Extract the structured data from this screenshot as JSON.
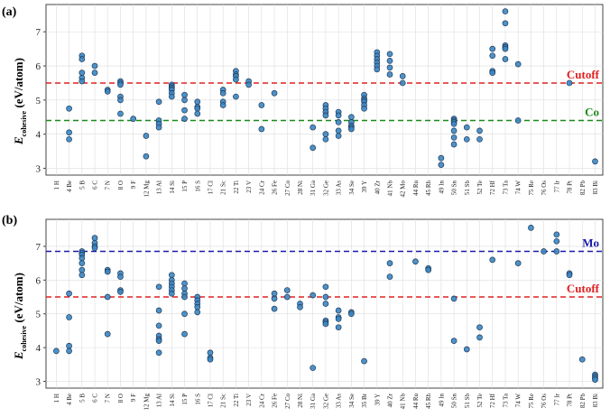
{
  "chart_data": [
    {
      "type": "scatter",
      "panel_label": "(a)",
      "ylabel_main": "E",
      "ylabel_sub": "cohesive",
      "ylabel_rest": " (eV/atom)",
      "ylim": [
        2.8,
        7.8
      ],
      "yticks": [
        "3",
        "4",
        "5",
        "6",
        "7"
      ],
      "ytick_values": [
        3,
        4,
        5,
        6,
        7
      ],
      "grid": true,
      "categories": [
        "1 H",
        "4 Be",
        "5 B",
        "6 C",
        "7 N",
        "8 O",
        "9 F",
        "12 Mg",
        "13 Al",
        "14 Si",
        "15 P",
        "16 S",
        "17 Cl",
        "21 Sc",
        "22 Ti",
        "23 V",
        "24 Cr",
        "26 Fe",
        "27 Co",
        "28 Ni",
        "31 Ga",
        "32 Ge",
        "33 As",
        "34 Se",
        "39 Y",
        "40 Zr",
        "41 Nb",
        "42 Mo",
        "44 Ru",
        "45 Rh",
        "49 In",
        "50 Sn",
        "51 Sb",
        "52 Te",
        "72 Hf",
        "73 Ta",
        "74 W",
        "75 Re",
        "76 Os",
        "77 Ir",
        "78 Pt",
        "82 Pb",
        "83 Bi"
      ],
      "points": {
        "4 Be": [
          4.75,
          4.05,
          3.85
        ],
        "5 B": [
          6.3,
          6.2,
          5.8,
          5.65,
          5.55
        ],
        "6 C": [
          6.0,
          5.8
        ],
        "7 N": [
          5.3,
          5.25
        ],
        "8 O": [
          5.55,
          5.5,
          5.45,
          5.1,
          5.0,
          4.6
        ],
        "9 F": [
          4.45
        ],
        "12 Mg": [
          3.95,
          3.35
        ],
        "13 Al": [
          4.95,
          4.4,
          4.3,
          4.2
        ],
        "14 Si": [
          5.45,
          5.4,
          5.35,
          5.3,
          5.2,
          5.1
        ],
        "15 P": [
          5.15,
          5.0,
          4.7,
          4.45
        ],
        "16 S": [
          4.95,
          4.8,
          4.75,
          4.6
        ],
        "21 Sc": [
          5.3,
          5.2,
          4.95,
          4.85
        ],
        "22 Ti": [
          5.85,
          5.75,
          5.7,
          5.6,
          5.1
        ],
        "23 V": [
          5.55,
          5.45
        ],
        "24 Cr": [
          4.85,
          4.15
        ],
        "26 Fe": [
          5.2
        ],
        "31 Ga": [
          4.2,
          3.6
        ],
        "32 Ge": [
          4.85,
          4.75,
          4.65,
          4.55,
          4.0,
          3.85
        ],
        "33 As": [
          4.65,
          4.55,
          4.35,
          4.1,
          3.95
        ],
        "34 Se": [
          4.5,
          4.35,
          4.25,
          4.2,
          4.15
        ],
        "39 Y": [
          5.15,
          5.05,
          5.0,
          4.95,
          4.85,
          4.75
        ],
        "40 Zr": [
          6.4,
          6.3,
          6.2,
          6.1,
          6.0,
          5.9
        ],
        "41 Nb": [
          6.35,
          6.15,
          5.95,
          5.75
        ],
        "42 Mo": [
          5.7,
          5.5
        ],
        "49 In": [
          3.3,
          3.1
        ],
        "50 Sn": [
          4.45,
          4.4,
          4.35,
          4.3,
          4.1,
          3.9,
          3.7
        ],
        "51 Sb": [
          4.2,
          3.85
        ],
        "52 Te": [
          4.1,
          3.85
        ],
        "72 Hf": [
          6.5,
          6.3,
          5.85,
          5.8
        ],
        "73 Ta": [
          7.6,
          7.25,
          6.6,
          6.55,
          6.5,
          6.2
        ],
        "74 W": [
          6.05,
          4.4
        ],
        "78 Pt": [
          5.5
        ],
        "83 Bi": [
          3.2
        ]
      },
      "hlines": [
        {
          "label": "Cutoff",
          "y": 5.5,
          "color": "#e02020"
        },
        {
          "label": "Co",
          "y": 4.4,
          "color": "#1a8a1a"
        }
      ]
    },
    {
      "type": "scatter",
      "panel_label": "(b)",
      "ylabel_main": "E",
      "ylabel_sub": "cohesive",
      "ylabel_rest": " (eV/atom)",
      "ylim": [
        2.8,
        7.8
      ],
      "yticks": [
        "3",
        "4",
        "5",
        "6",
        "7"
      ],
      "ytick_values": [
        3,
        4,
        5,
        6,
        7
      ],
      "grid": true,
      "categories": [
        "1 H",
        "4 Be",
        "5 B",
        "6 C",
        "7 N",
        "8 O",
        "9 F",
        "12 Mg",
        "13 Al",
        "14 Si",
        "15 P",
        "16 S",
        "17 Cl",
        "21 Sc",
        "22 Ti",
        "23 V",
        "24 Cr",
        "26 Fe",
        "27 Co",
        "28 Ni",
        "31 Ga",
        "32 Ge",
        "33 As",
        "34 Se",
        "35 Br",
        "39 Y",
        "40 Zr",
        "41 Nb",
        "44 Ru",
        "45 Rh",
        "49 In",
        "50 Sn",
        "51 Sb",
        "52 Te",
        "72 Hf",
        "73 Ta",
        "74 W",
        "75 Re",
        "76 Os",
        "77 Ir",
        "78 Pt",
        "82 Pb",
        "83 Bi"
      ],
      "points": {
        "1 H": [
          3.9
        ],
        "4 Be": [
          5.6,
          4.9,
          4.05,
          3.9
        ],
        "5 B": [
          6.85,
          6.8,
          6.75,
          6.65,
          6.5,
          6.3,
          6.15
        ],
        "6 C": [
          7.25,
          7.1,
          7.0,
          6.95
        ],
        "7 N": [
          6.3,
          6.25,
          5.5,
          4.4
        ],
        "8 O": [
          6.2,
          6.1,
          5.7,
          5.65
        ],
        "13 Al": [
          5.8,
          5.1,
          4.65,
          4.35,
          4.25,
          4.2,
          3.85
        ],
        "14 Si": [
          6.15,
          6.0,
          5.9,
          5.8,
          5.7,
          5.6
        ],
        "15 P": [
          5.9,
          5.75,
          5.6,
          5.5,
          5.0,
          4.4
        ],
        "16 S": [
          5.5,
          5.4,
          5.3,
          5.2,
          5.05
        ],
        "17 Cl": [
          3.85,
          3.7,
          3.65
        ],
        "26 Fe": [
          5.6,
          5.45,
          5.15
        ],
        "27 Co": [
          5.7,
          5.5
        ],
        "28 Ni": [
          5.3,
          5.2
        ],
        "31 Ga": [
          5.55,
          3.4
        ],
        "32 Ge": [
          5.8,
          5.5,
          5.3,
          4.8,
          4.75,
          4.7
        ],
        "33 As": [
          5.1,
          4.9,
          4.85,
          4.6
        ],
        "34 Se": [
          5.05,
          5.0
        ],
        "35 Br": [
          3.6
        ],
        "40 Zr": [
          6.5,
          6.1
        ],
        "44 Ru": [
          6.55
        ],
        "45 Rh": [
          6.35,
          6.3
        ],
        "50 Sn": [
          5.45,
          4.2
        ],
        "51 Sb": [
          3.95
        ],
        "52 Te": [
          4.6,
          4.3
        ],
        "72 Hf": [
          6.6
        ],
        "74 W": [
          6.5
        ],
        "75 Re": [
          7.55
        ],
        "76 Os": [
          6.85
        ],
        "77 Ir": [
          7.35,
          7.15,
          6.85
        ],
        "78 Pt": [
          6.2,
          6.15
        ],
        "82 Pb": [
          3.65
        ],
        "83 Bi": [
          3.2,
          3.15,
          3.1,
          3.05
        ]
      },
      "hlines": [
        {
          "label": "Mo",
          "y": 6.85,
          "color": "#1a1aaa"
        },
        {
          "label": "Cutoff",
          "y": 5.5,
          "color": "#e02020"
        }
      ]
    }
  ],
  "style": {
    "marker_fill": "#3b86c2",
    "marker_stroke": "#1f3a5a",
    "grid_color": "#dddddd",
    "axis_color": "#444444"
  }
}
